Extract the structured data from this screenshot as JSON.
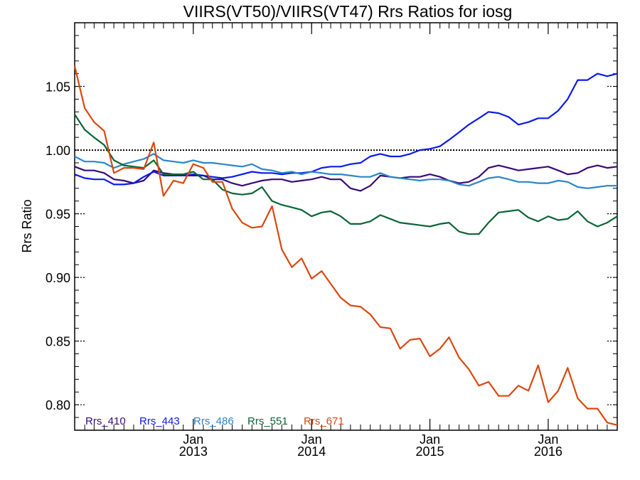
{
  "chart_data": {
    "type": "line",
    "title": "VIIRS(VT50)/VIIRS(VT47)  Rrs Ratios for iosg",
    "xlabel": "",
    "ylabel": "Rrs Ratio",
    "xlim": [
      "2012-01-01",
      "2016-08-01"
    ],
    "ylim": [
      0.78,
      1.1
    ],
    "x_ticks": [
      {
        "x": "2013-01-01",
        "month": "Jan",
        "year": "2013"
      },
      {
        "x": "2014-01-01",
        "month": "Jan",
        "year": "2014"
      },
      {
        "x": "2015-01-01",
        "month": "Jan",
        "year": "2015"
      },
      {
        "x": "2016-01-01",
        "month": "Jan",
        "year": "2016"
      }
    ],
    "y_ticks": [
      {
        "value": 0.8,
        "label": "0.80"
      },
      {
        "value": 0.85,
        "label": "0.85"
      },
      {
        "value": 0.9,
        "label": "0.90"
      },
      {
        "value": 0.95,
        "label": "0.95"
      },
      {
        "value": 1.0,
        "label": "1.00"
      },
      {
        "value": 1.05,
        "label": "1.05"
      }
    ],
    "reference_line": 1.0,
    "legend_position": "bottom-left",
    "x": [
      "2012-01-01",
      "2012-02-01",
      "2012-03-01",
      "2012-04-01",
      "2012-05-01",
      "2012-06-01",
      "2012-07-01",
      "2012-08-01",
      "2012-09-01",
      "2012-10-01",
      "2012-11-01",
      "2012-12-01",
      "2013-01-01",
      "2013-02-01",
      "2013-03-01",
      "2013-04-01",
      "2013-05-01",
      "2013-06-01",
      "2013-07-01",
      "2013-08-01",
      "2013-09-01",
      "2013-10-01",
      "2013-11-01",
      "2013-12-01",
      "2014-01-01",
      "2014-02-01",
      "2014-03-01",
      "2014-04-01",
      "2014-05-01",
      "2014-06-01",
      "2014-07-01",
      "2014-08-01",
      "2014-09-01",
      "2014-10-01",
      "2014-11-01",
      "2014-12-01",
      "2015-01-01",
      "2015-02-01",
      "2015-03-01",
      "2015-04-01",
      "2015-05-01",
      "2015-06-01",
      "2015-07-01",
      "2015-08-01",
      "2015-09-01",
      "2015-10-01",
      "2015-11-01",
      "2015-12-01",
      "2016-01-01",
      "2016-02-01",
      "2016-03-01",
      "2016-04-01",
      "2016-05-01",
      "2016-06-01",
      "2016-07-01",
      "2016-08-01"
    ],
    "series": [
      {
        "name": "Rrs_410",
        "color": "#3a0a78",
        "values": [
          0.987,
          0.984,
          0.984,
          0.982,
          0.977,
          0.976,
          0.974,
          0.976,
          0.984,
          0.982,
          0.981,
          0.98,
          0.98,
          0.98,
          0.977,
          0.977,
          0.974,
          0.972,
          0.974,
          0.976,
          0.977,
          0.977,
          0.975,
          0.976,
          0.977,
          0.979,
          0.977,
          0.977,
          0.97,
          0.968,
          0.972,
          0.98,
          0.979,
          0.978,
          0.979,
          0.979,
          0.981,
          0.979,
          0.976,
          0.974,
          0.975,
          0.979,
          0.986,
          0.988,
          0.986,
          0.984,
          0.985,
          0.986,
          0.987,
          0.984,
          0.981,
          0.982,
          0.986,
          0.988,
          0.986,
          0.987
        ]
      },
      {
        "name": "Rrs_443",
        "color": "#0b1be6",
        "values": [
          0.981,
          0.978,
          0.977,
          0.977,
          0.973,
          0.973,
          0.974,
          0.979,
          0.983,
          0.98,
          0.98,
          0.98,
          0.981,
          0.98,
          0.979,
          0.978,
          0.979,
          0.981,
          0.983,
          0.982,
          0.982,
          0.981,
          0.982,
          0.982,
          0.983,
          0.986,
          0.987,
          0.987,
          0.989,
          0.99,
          0.995,
          0.997,
          0.995,
          0.995,
          0.997,
          1.0,
          1.001,
          1.003,
          1.008,
          1.014,
          1.02,
          1.025,
          1.03,
          1.029,
          1.026,
          1.02,
          1.022,
          1.025,
          1.025,
          1.031,
          1.04,
          1.055,
          1.055,
          1.06,
          1.058,
          1.06
        ]
      },
      {
        "name": "Rrs_486",
        "color": "#2b86c8",
        "values": [
          0.995,
          0.991,
          0.991,
          0.99,
          0.986,
          0.989,
          0.991,
          0.993,
          0.997,
          0.992,
          0.991,
          0.99,
          0.992,
          0.99,
          0.99,
          0.989,
          0.988,
          0.987,
          0.989,
          0.985,
          0.984,
          0.982,
          0.983,
          0.981,
          0.983,
          0.982,
          0.981,
          0.981,
          0.98,
          0.979,
          0.979,
          0.982,
          0.979,
          0.978,
          0.977,
          0.976,
          0.977,
          0.977,
          0.976,
          0.973,
          0.972,
          0.975,
          0.978,
          0.979,
          0.977,
          0.975,
          0.975,
          0.974,
          0.974,
          0.976,
          0.975,
          0.971,
          0.97,
          0.971,
          0.972,
          0.972
        ]
      },
      {
        "name": "Rrs_551",
        "color": "#0a6436",
        "values": [
          1.028,
          1.016,
          1.01,
          1.004,
          0.992,
          0.988,
          0.987,
          0.986,
          0.992,
          0.981,
          0.981,
          0.981,
          0.983,
          0.977,
          0.977,
          0.969,
          0.966,
          0.965,
          0.966,
          0.971,
          0.96,
          0.957,
          0.955,
          0.953,
          0.948,
          0.951,
          0.952,
          0.948,
          0.942,
          0.942,
          0.944,
          0.949,
          0.946,
          0.943,
          0.942,
          0.941,
          0.94,
          0.942,
          0.943,
          0.936,
          0.934,
          0.934,
          0.943,
          0.951,
          0.952,
          0.953,
          0.947,
          0.944,
          0.948,
          0.945,
          0.946,
          0.952,
          0.944,
          0.94,
          0.943,
          0.948
        ]
      },
      {
        "name": "Rrs_671",
        "color": "#d9480f",
        "values": [
          1.066,
          1.033,
          1.022,
          1.015,
          0.982,
          0.986,
          0.986,
          0.985,
          1.006,
          0.964,
          0.976,
          0.974,
          0.989,
          0.986,
          0.975,
          0.975,
          0.954,
          0.943,
          0.939,
          0.94,
          0.956,
          0.922,
          0.908,
          0.915,
          0.899,
          0.905,
          0.895,
          0.884,
          0.878,
          0.877,
          0.871,
          0.861,
          0.86,
          0.844,
          0.851,
          0.852,
          0.838,
          0.844,
          0.853,
          0.837,
          0.828,
          0.815,
          0.818,
          0.807,
          0.807,
          0.815,
          0.811,
          0.831,
          0.802,
          0.811,
          0.829,
          0.805,
          0.797,
          0.797,
          0.786,
          0.784
        ]
      }
    ]
  }
}
